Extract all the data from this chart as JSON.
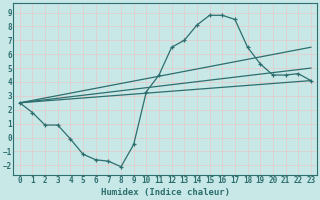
{
  "xlabel": "Humidex (Indice chaleur)",
  "bg_color": "#c8e8e8",
  "grid_color": "#ddf0f0",
  "line_color": "#2d6e6e",
  "xlim": [
    -0.5,
    23.5
  ],
  "ylim": [
    -2.7,
    9.7
  ],
  "xticks": [
    0,
    1,
    2,
    3,
    4,
    5,
    6,
    7,
    8,
    9,
    10,
    11,
    12,
    13,
    14,
    15,
    16,
    17,
    18,
    19,
    20,
    21,
    22,
    23
  ],
  "yticks": [
    -2,
    -1,
    0,
    1,
    2,
    3,
    4,
    5,
    6,
    7,
    8,
    9
  ],
  "curve1_x": [
    0,
    1,
    2,
    3,
    4,
    5,
    6,
    7,
    8,
    9,
    10,
    11,
    12,
    13,
    14,
    15,
    16,
    17,
    18,
    19,
    20,
    21,
    22,
    23
  ],
  "curve1_y": [
    2.5,
    1.8,
    0.9,
    0.9,
    -0.1,
    -1.2,
    -1.6,
    -1.7,
    -2.1,
    -0.5,
    3.3,
    4.5,
    6.5,
    7.0,
    8.1,
    8.8,
    8.8,
    8.5,
    6.5,
    5.3,
    4.5,
    4.5,
    4.6,
    4.1
  ],
  "line1_x": [
    0,
    23
  ],
  "line1_y": [
    2.5,
    6.5
  ],
  "line2_x": [
    0,
    23
  ],
  "line2_y": [
    2.5,
    5.0
  ],
  "line3_x": [
    0,
    23
  ],
  "line3_y": [
    2.5,
    4.1
  ]
}
